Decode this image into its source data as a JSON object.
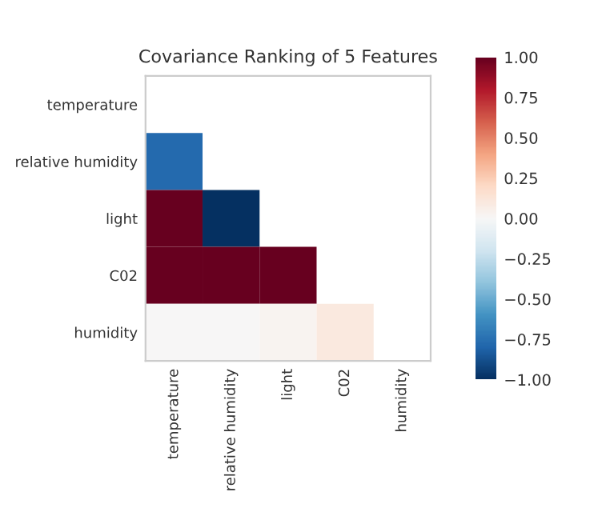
{
  "chart_data": {
    "type": "heatmap",
    "title": "Covariance Ranking of 5 Features",
    "categories": [
      "temperature",
      "relative humidity",
      "light",
      "C02",
      "humidity"
    ],
    "y_categories": [
      "temperature",
      "relative humidity",
      "light",
      "C02",
      "humidity"
    ],
    "cells": [
      [
        null,
        null,
        null,
        null,
        null
      ],
      [
        -0.78,
        null,
        null,
        null,
        null
      ],
      [
        1.0,
        -1.0,
        null,
        null,
        null
      ],
      [
        1.0,
        1.0,
        1.0,
        null,
        null
      ],
      [
        0.0,
        0.0,
        0.03,
        0.1,
        null
      ]
    ],
    "clim": [
      -1.0,
      1.0
    ],
    "cticks": [
      {
        "value": 1.0,
        "label": "1.00"
      },
      {
        "value": 0.75,
        "label": "0.75"
      },
      {
        "value": 0.5,
        "label": "0.50"
      },
      {
        "value": 0.25,
        "label": "0.25"
      },
      {
        "value": 0.0,
        "label": "0.00"
      },
      {
        "value": -0.25,
        "label": "−0.25"
      },
      {
        "value": -0.5,
        "label": "−0.50"
      },
      {
        "value": -0.75,
        "label": "−0.75"
      },
      {
        "value": -1.0,
        "label": "−1.00"
      }
    ],
    "grid": false
  }
}
